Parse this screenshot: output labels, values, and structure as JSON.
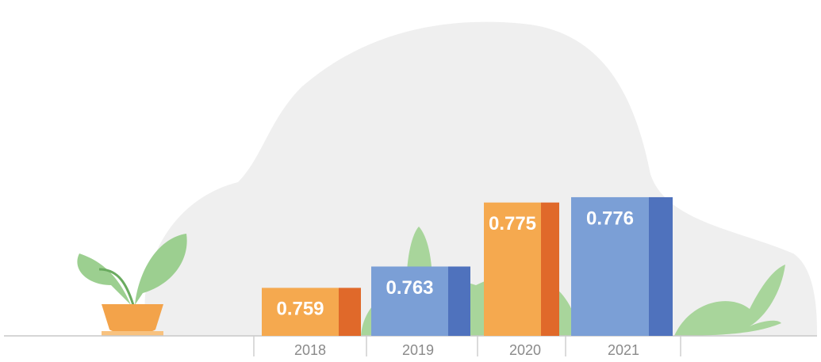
{
  "chart_data": {
    "type": "bar",
    "categories": [
      "2018",
      "2019",
      "2020",
      "2021"
    ],
    "values": [
      0.759,
      0.763,
      0.775,
      0.776
    ],
    "colors": [
      "#f5a94f",
      "#7b9fd6",
      "#f5a94f",
      "#7b9fd6"
    ],
    "side_colors": [
      "#e0692a",
      "#4f72bd",
      "#e0692a",
      "#4f72bd"
    ],
    "ylim": [
      0.75,
      0.78
    ]
  }
}
